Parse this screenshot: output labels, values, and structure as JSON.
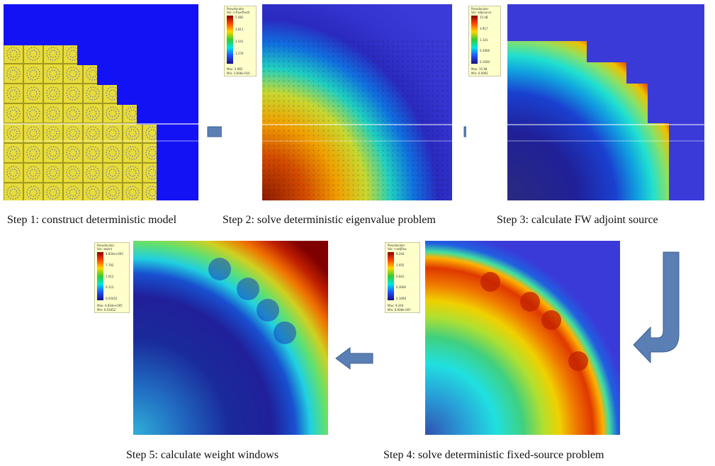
{
  "steps": [
    {
      "id": 1,
      "caption": "Step 1: construct deterministic model"
    },
    {
      "id": 2,
      "caption": "Step 2: solve deterministic eigenvalue problem",
      "legend": {
        "plot": "Pseudocolor",
        "var": "Var: n-flux(fluxt)",
        "ticks": [
          "5.082",
          "3.811",
          "2.541",
          "1.270"
        ],
        "max": "Max: 5.082",
        "min": "Min: 2.606e-010"
      }
    },
    {
      "id": 3,
      "caption": "Step 3: calculate FW adjoint source",
      "legend": {
        "plot": "Pseudocolor",
        "var": "Var: adjsource",
        "ticks": [
          "15.48",
          "3.917",
          "1.141",
          "0.3406",
          "0.1000"
        ],
        "max": "Max: 15.48",
        "min": "Min: 0.0092"
      }
    },
    {
      "id": 4,
      "caption": "Step 4: solve deterministic fixed-source problem",
      "legend": {
        "plot": "Pseudocolor",
        "var": "Var: n-adjflux",
        "ticks": [
          "9.244",
          "2.955",
          "0.941",
          "0.3006",
          "0.1000"
        ],
        "max": "Max: 9.244",
        "min": "Min: 6.608e-007"
      }
    },
    {
      "id": 5,
      "caption": "Step 5: calculate weight windows",
      "legend": {
        "plot": "Pseudocolor",
        "var": "Var: ww(n)",
        "ticks": [
          "4.834e+005",
          "7.792",
          "1.912",
          "0.112",
          "0.03452"
        ],
        "max": "Max: 4.834e+005",
        "min": "Min: 0.03452"
      }
    }
  ],
  "colors": {
    "deep_blue": "#3a33d6",
    "yellow": "#e7dc3a",
    "arrow": "#5a7fb4"
  }
}
